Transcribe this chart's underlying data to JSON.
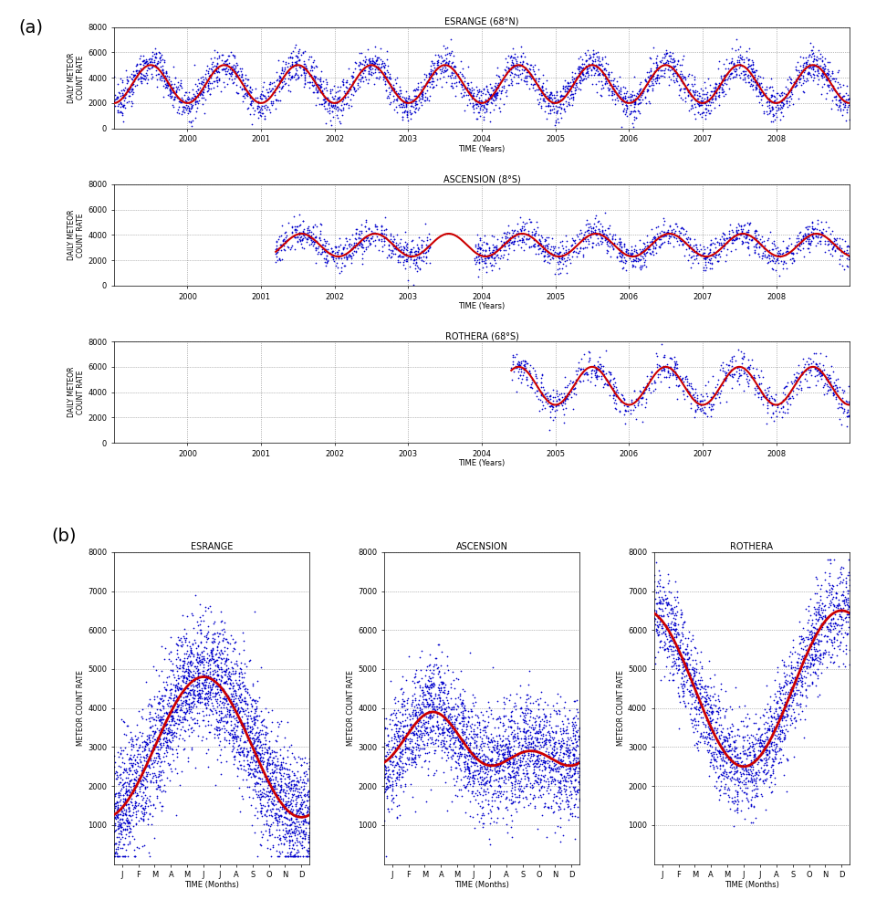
{
  "panel_a": {
    "titles": [
      "ESRANGE (68°N)",
      "ASCENSION (8°S)",
      "ROTHERA (68°S)"
    ],
    "ylabel": "DAILY METEOR\nCOUNT RATE",
    "xlabel": "TIME (Years)",
    "xlim": [
      1999.0,
      2009.0
    ],
    "ylim": [
      0,
      8000
    ],
    "yticks": [
      0,
      2000,
      4000,
      6000,
      8000
    ],
    "xtick_years": [
      2000,
      2001,
      2002,
      2003,
      2004,
      2005,
      2006,
      2007,
      2008
    ],
    "dot_color": "#0000cc",
    "line_color": "#cc0000",
    "dot_size": 1.5,
    "line_width": 1.5
  },
  "panel_b": {
    "titles": [
      "ESRANGE",
      "ASCENSION",
      "ROTHERA"
    ],
    "ylabel": "METEOR COUNT RATE",
    "xlabel": "TIME (Months)",
    "month_labels": [
      "J",
      "F",
      "M",
      "A",
      "M",
      "J",
      "J",
      "A",
      "S",
      "O",
      "N",
      "D"
    ],
    "ylim": [
      0,
      8000
    ],
    "yticks": [
      1000,
      2000,
      3000,
      4000,
      5000,
      6000,
      7000,
      8000
    ],
    "dot_color": "#0000cc",
    "line_color": "#cc0000",
    "dot_size": 1.5,
    "line_width": 2.0
  },
  "bg_color": "#ffffff",
  "label_a": "(a)",
  "label_b": "(b)"
}
